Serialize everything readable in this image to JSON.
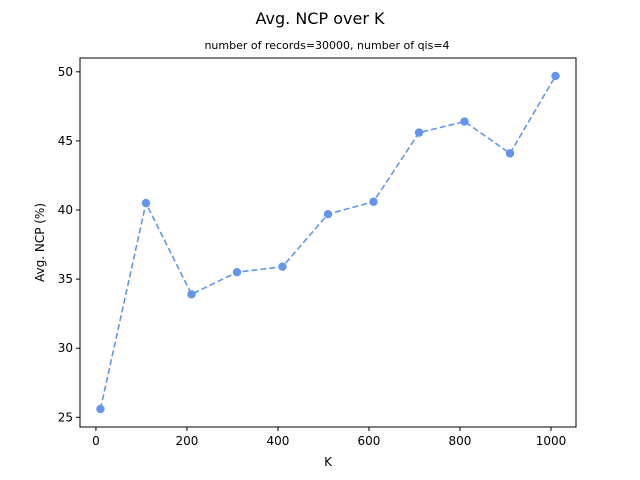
{
  "chart_data": {
    "type": "line",
    "title": "Avg. NCP over K",
    "subtitle": "number of records=30000, number of qis=4",
    "xlabel": "K",
    "ylabel": "Avg. NCP (%)",
    "xlim": [
      -35,
      1055
    ],
    "ylim": [
      24.3,
      51.0
    ],
    "xticks": [
      0,
      200,
      400,
      600,
      800,
      1000
    ],
    "yticks": [
      25,
      30,
      35,
      40,
      45,
      50
    ],
    "grid": false,
    "series": [
      {
        "color": "#6495ED",
        "line_style": "dashed",
        "marker": "circle",
        "x": [
          10,
          110,
          210,
          310,
          410,
          510,
          610,
          710,
          810,
          910,
          1010
        ],
        "y": [
          25.6,
          40.5,
          33.9,
          35.5,
          35.9,
          39.7,
          40.6,
          45.6,
          46.4,
          44.1,
          49.7
        ]
      }
    ]
  }
}
